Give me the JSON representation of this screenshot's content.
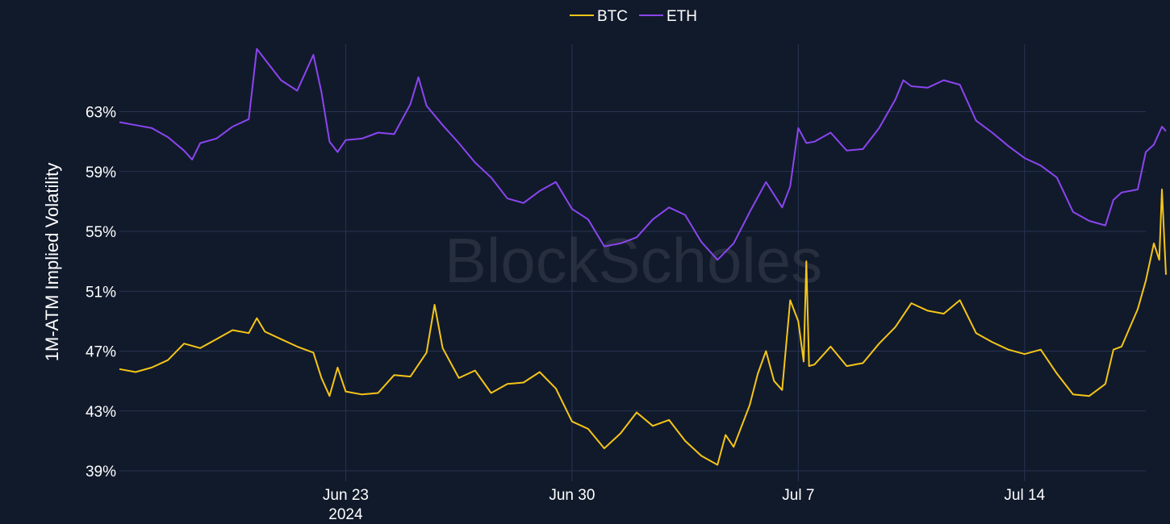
{
  "watermark": "BlockScholes",
  "chart_data": {
    "type": "line",
    "title": "",
    "xlabel": "",
    "ylabel": "1M-ATM Implied Volatility",
    "x_range": [
      "2024-06-16",
      "2024-07-17"
    ],
    "x_ticks": [
      {
        "date": "2024-06-23",
        "label": "Jun 23",
        "sublabel": "2024"
      },
      {
        "date": "2024-06-30",
        "label": "Jun 30",
        "sublabel": ""
      },
      {
        "date": "2024-07-07",
        "label": "Jul 7",
        "sublabel": ""
      },
      {
        "date": "2024-07-14",
        "label": "Jul 14",
        "sublabel": ""
      }
    ],
    "y_ticks": [
      39,
      43,
      47,
      51,
      55,
      59,
      63
    ],
    "y_tick_suffix": "%",
    "ylim": [
      38.3,
      67.5
    ],
    "grid": true,
    "legend_position": "top-center",
    "series": [
      {
        "name": "BTC",
        "color": "#f5c518",
        "points": [
          [
            "2024-06-16T00:00",
            45.8
          ],
          [
            "2024-06-16T12:00",
            45.6
          ],
          [
            "2024-06-17T00:00",
            45.9
          ],
          [
            "2024-06-17T12:00",
            46.4
          ],
          [
            "2024-06-18T00:00",
            47.5
          ],
          [
            "2024-06-18T12:00",
            47.2
          ],
          [
            "2024-06-19T00:00",
            47.8
          ],
          [
            "2024-06-19T12:00",
            48.4
          ],
          [
            "2024-06-20T00:00",
            48.2
          ],
          [
            "2024-06-20T06:00",
            49.2
          ],
          [
            "2024-06-20T12:00",
            48.3
          ],
          [
            "2024-06-21T00:00",
            47.8
          ],
          [
            "2024-06-21T12:00",
            47.3
          ],
          [
            "2024-06-22T00:00",
            46.9
          ],
          [
            "2024-06-22T06:00",
            45.2
          ],
          [
            "2024-06-22T12:00",
            44.0
          ],
          [
            "2024-06-22T18:00",
            45.9
          ],
          [
            "2024-06-23T00:00",
            44.3
          ],
          [
            "2024-06-23T12:00",
            44.1
          ],
          [
            "2024-06-24T00:00",
            44.2
          ],
          [
            "2024-06-24T12:00",
            45.4
          ],
          [
            "2024-06-25T00:00",
            45.3
          ],
          [
            "2024-06-25T12:00",
            46.9
          ],
          [
            "2024-06-25T18:00",
            50.1
          ],
          [
            "2024-06-26T00:00",
            47.2
          ],
          [
            "2024-06-26T12:00",
            45.2
          ],
          [
            "2024-06-27T00:00",
            45.7
          ],
          [
            "2024-06-27T12:00",
            44.2
          ],
          [
            "2024-06-28T00:00",
            44.8
          ],
          [
            "2024-06-28T12:00",
            44.9
          ],
          [
            "2024-06-29T00:00",
            45.6
          ],
          [
            "2024-06-29T12:00",
            44.5
          ],
          [
            "2024-06-30T00:00",
            42.3
          ],
          [
            "2024-06-30T12:00",
            41.8
          ],
          [
            "2024-07-01T00:00",
            40.5
          ],
          [
            "2024-07-01T12:00",
            41.5
          ],
          [
            "2024-07-02T00:00",
            42.9
          ],
          [
            "2024-07-02T12:00",
            42.0
          ],
          [
            "2024-07-03T00:00",
            42.4
          ],
          [
            "2024-07-03T12:00",
            41.0
          ],
          [
            "2024-07-04T00:00",
            40.0
          ],
          [
            "2024-07-04T12:00",
            39.4
          ],
          [
            "2024-07-04T18:00",
            41.4
          ],
          [
            "2024-07-05T00:00",
            40.6
          ],
          [
            "2024-07-05T12:00",
            43.4
          ],
          [
            "2024-07-05T18:00",
            45.5
          ],
          [
            "2024-07-06T00:00",
            47.0
          ],
          [
            "2024-07-06T06:00",
            45.0
          ],
          [
            "2024-07-06T12:00",
            44.4
          ],
          [
            "2024-07-06T18:00",
            50.4
          ],
          [
            "2024-07-07T00:00",
            49.0
          ],
          [
            "2024-07-07T04:00",
            46.3
          ],
          [
            "2024-07-07T06:00",
            53.0
          ],
          [
            "2024-07-07T08:00",
            46.0
          ],
          [
            "2024-07-07T12:00",
            46.1
          ],
          [
            "2024-07-08T00:00",
            47.3
          ],
          [
            "2024-07-08T12:00",
            46.0
          ],
          [
            "2024-07-09T00:00",
            46.2
          ],
          [
            "2024-07-09T12:00",
            47.5
          ],
          [
            "2024-07-10T00:00",
            48.6
          ],
          [
            "2024-07-10T12:00",
            50.2
          ],
          [
            "2024-07-11T00:00",
            49.7
          ],
          [
            "2024-07-11T12:00",
            49.5
          ],
          [
            "2024-07-12T00:00",
            50.4
          ],
          [
            "2024-07-12T12:00",
            48.2
          ],
          [
            "2024-07-13T00:00",
            47.6
          ],
          [
            "2024-07-13T12:00",
            47.1
          ],
          [
            "2024-07-14T00:00",
            46.8
          ],
          [
            "2024-07-14T12:00",
            47.1
          ],
          [
            "2024-07-15T00:00",
            45.5
          ],
          [
            "2024-07-15T12:00",
            44.1
          ],
          [
            "2024-07-16T00:00",
            44.0
          ],
          [
            "2024-07-16T12:00",
            44.8
          ],
          [
            "2024-07-16T18:00",
            47.1
          ],
          [
            "2024-07-17T00:00",
            47.3
          ],
          [
            "2024-07-17T12:00",
            49.8
          ],
          [
            "2024-07-17T18:00",
            51.7
          ],
          [
            "2024-07-18T00:00",
            54.2
          ],
          [
            "2024-07-18T04:00",
            53.1
          ],
          [
            "2024-07-18T06:00",
            57.8
          ],
          [
            "2024-07-18T09:00",
            52.1
          ]
        ]
      },
      {
        "name": "ETH",
        "color": "#8b45f0",
        "points": [
          [
            "2024-06-16T00:00",
            62.3
          ],
          [
            "2024-06-16T12:00",
            62.1
          ],
          [
            "2024-06-17T00:00",
            61.9
          ],
          [
            "2024-06-17T12:00",
            61.3
          ],
          [
            "2024-06-18T00:00",
            60.4
          ],
          [
            "2024-06-18T06:00",
            59.8
          ],
          [
            "2024-06-18T12:00",
            60.9
          ],
          [
            "2024-06-19T00:00",
            61.2
          ],
          [
            "2024-06-19T12:00",
            62.0
          ],
          [
            "2024-06-20T00:00",
            62.5
          ],
          [
            "2024-06-20T06:00",
            67.2
          ],
          [
            "2024-06-20T12:00",
            66.5
          ],
          [
            "2024-06-21T00:00",
            65.1
          ],
          [
            "2024-06-21T12:00",
            64.4
          ],
          [
            "2024-06-22T00:00",
            66.8
          ],
          [
            "2024-06-22T06:00",
            64.3
          ],
          [
            "2024-06-22T12:00",
            61.0
          ],
          [
            "2024-06-22T18:00",
            60.3
          ],
          [
            "2024-06-23T00:00",
            61.1
          ],
          [
            "2024-06-23T12:00",
            61.2
          ],
          [
            "2024-06-24T00:00",
            61.6
          ],
          [
            "2024-06-24T12:00",
            61.5
          ],
          [
            "2024-06-25T00:00",
            63.5
          ],
          [
            "2024-06-25T06:00",
            65.3
          ],
          [
            "2024-06-25T12:00",
            63.4
          ],
          [
            "2024-06-26T00:00",
            62.1
          ],
          [
            "2024-06-26T12:00",
            60.9
          ],
          [
            "2024-06-27T00:00",
            59.6
          ],
          [
            "2024-06-27T12:00",
            58.6
          ],
          [
            "2024-06-28T00:00",
            57.2
          ],
          [
            "2024-06-28T12:00",
            56.9
          ],
          [
            "2024-06-29T00:00",
            57.7
          ],
          [
            "2024-06-29T12:00",
            58.3
          ],
          [
            "2024-06-30T00:00",
            56.5
          ],
          [
            "2024-06-30T12:00",
            55.8
          ],
          [
            "2024-07-01T00:00",
            54.0
          ],
          [
            "2024-07-01T12:00",
            54.2
          ],
          [
            "2024-07-02T00:00",
            54.6
          ],
          [
            "2024-07-02T12:00",
            55.8
          ],
          [
            "2024-07-03T00:00",
            56.6
          ],
          [
            "2024-07-03T12:00",
            56.1
          ],
          [
            "2024-07-04T00:00",
            54.3
          ],
          [
            "2024-07-04T12:00",
            53.1
          ],
          [
            "2024-07-05T00:00",
            54.2
          ],
          [
            "2024-07-05T12:00",
            56.3
          ],
          [
            "2024-07-06T00:00",
            58.3
          ],
          [
            "2024-07-06T12:00",
            56.6
          ],
          [
            "2024-07-06T18:00",
            58.0
          ],
          [
            "2024-07-07T00:00",
            61.9
          ],
          [
            "2024-07-07T06:00",
            60.9
          ],
          [
            "2024-07-07T12:00",
            61.0
          ],
          [
            "2024-07-08T00:00",
            61.6
          ],
          [
            "2024-07-08T12:00",
            60.4
          ],
          [
            "2024-07-09T00:00",
            60.5
          ],
          [
            "2024-07-09T12:00",
            61.9
          ],
          [
            "2024-07-10T00:00",
            63.8
          ],
          [
            "2024-07-10T06:00",
            65.1
          ],
          [
            "2024-07-10T12:00",
            64.7
          ],
          [
            "2024-07-11T00:00",
            64.6
          ],
          [
            "2024-07-11T12:00",
            65.1
          ],
          [
            "2024-07-12T00:00",
            64.8
          ],
          [
            "2024-07-12T12:00",
            62.4
          ],
          [
            "2024-07-13T00:00",
            61.6
          ],
          [
            "2024-07-13T12:00",
            60.7
          ],
          [
            "2024-07-14T00:00",
            59.9
          ],
          [
            "2024-07-14T12:00",
            59.4
          ],
          [
            "2024-07-15T00:00",
            58.6
          ],
          [
            "2024-07-15T12:00",
            56.3
          ],
          [
            "2024-07-16T00:00",
            55.7
          ],
          [
            "2024-07-16T12:00",
            55.4
          ],
          [
            "2024-07-16T18:00",
            57.1
          ],
          [
            "2024-07-17T00:00",
            57.6
          ],
          [
            "2024-07-17T12:00",
            57.8
          ],
          [
            "2024-07-17T18:00",
            60.3
          ],
          [
            "2024-07-18T00:00",
            60.8
          ],
          [
            "2024-07-18T06:00",
            62.0
          ],
          [
            "2024-07-18T09:00",
            61.7
          ]
        ]
      }
    ]
  }
}
